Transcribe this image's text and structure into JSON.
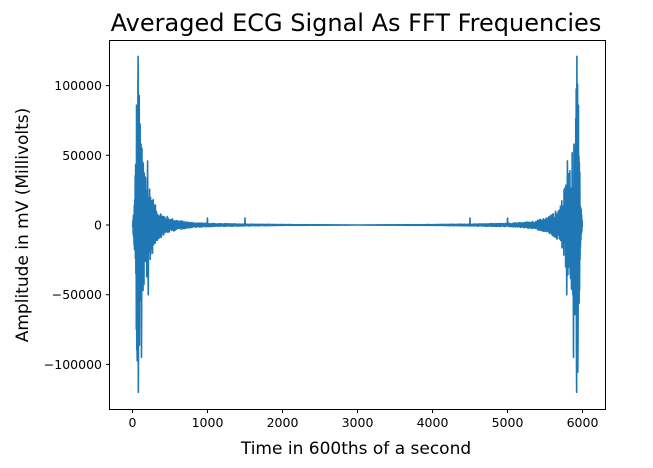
{
  "chart_data": {
    "type": "line",
    "title": "Averaged ECG Signal As FFT Frequencies",
    "xlabel": "Time in 600ths of a second",
    "ylabel": "Amplitude in mV (Millivolts)",
    "xlim": [
      -300,
      6300
    ],
    "ylim": [
      -132000,
      132000
    ],
    "x_ticks": [
      0,
      1000,
      2000,
      3000,
      4000,
      5000,
      6000
    ],
    "x_tick_labels": [
      "0",
      "1000",
      "2000",
      "3000",
      "4000",
      "5000",
      "6000"
    ],
    "y_ticks": [
      -100000,
      -50000,
      0,
      50000,
      100000
    ],
    "y_tick_labels": [
      "−100000",
      "−50000",
      "0",
      "50000",
      "100000"
    ],
    "grid": false,
    "series": [
      {
        "color": "#1f77b4",
        "description": "dense oscillation, symmetric about x=3000; large spikes near 0-500 and 5500-6000, near-zero in the middle",
        "envelope_left": [
          {
            "x": 0,
            "amp": 0
          },
          {
            "x": 30,
            "amp": 22000
          },
          {
            "x": 50,
            "amp": 85000
          },
          {
            "x": 70,
            "amp": 121000
          },
          {
            "x": 90,
            "amp": 98000
          },
          {
            "x": 120,
            "amp": 58000
          },
          {
            "x": 160,
            "amp": 45000
          },
          {
            "x": 200,
            "amp": 36000
          },
          {
            "x": 260,
            "amp": 22000
          },
          {
            "x": 320,
            "amp": 12000
          },
          {
            "x": 400,
            "amp": 8000
          },
          {
            "x": 500,
            "amp": 5000
          },
          {
            "x": 600,
            "amp": 3500
          },
          {
            "x": 700,
            "amp": 2500
          },
          {
            "x": 800,
            "amp": 1800
          },
          {
            "x": 1000,
            "amp": 1200
          },
          {
            "x": 1500,
            "amp": 700
          },
          {
            "x": 2000,
            "amp": 300
          },
          {
            "x": 3000,
            "amp": 0
          }
        ],
        "spikes_left": [
          {
            "x": 75,
            "y": 121000
          },
          {
            "x": 78,
            "y": -120000
          },
          {
            "x": 55,
            "y": 86000
          },
          {
            "x": 60,
            "y": -85000
          },
          {
            "x": 115,
            "y": 58000
          },
          {
            "x": 120,
            "y": -95000
          },
          {
            "x": 200,
            "y": 46000
          },
          {
            "x": 210,
            "y": -50000
          },
          {
            "x": 1000,
            "y": 5000
          },
          {
            "x": 1500,
            "y": 5000
          }
        ]
      }
    ]
  }
}
